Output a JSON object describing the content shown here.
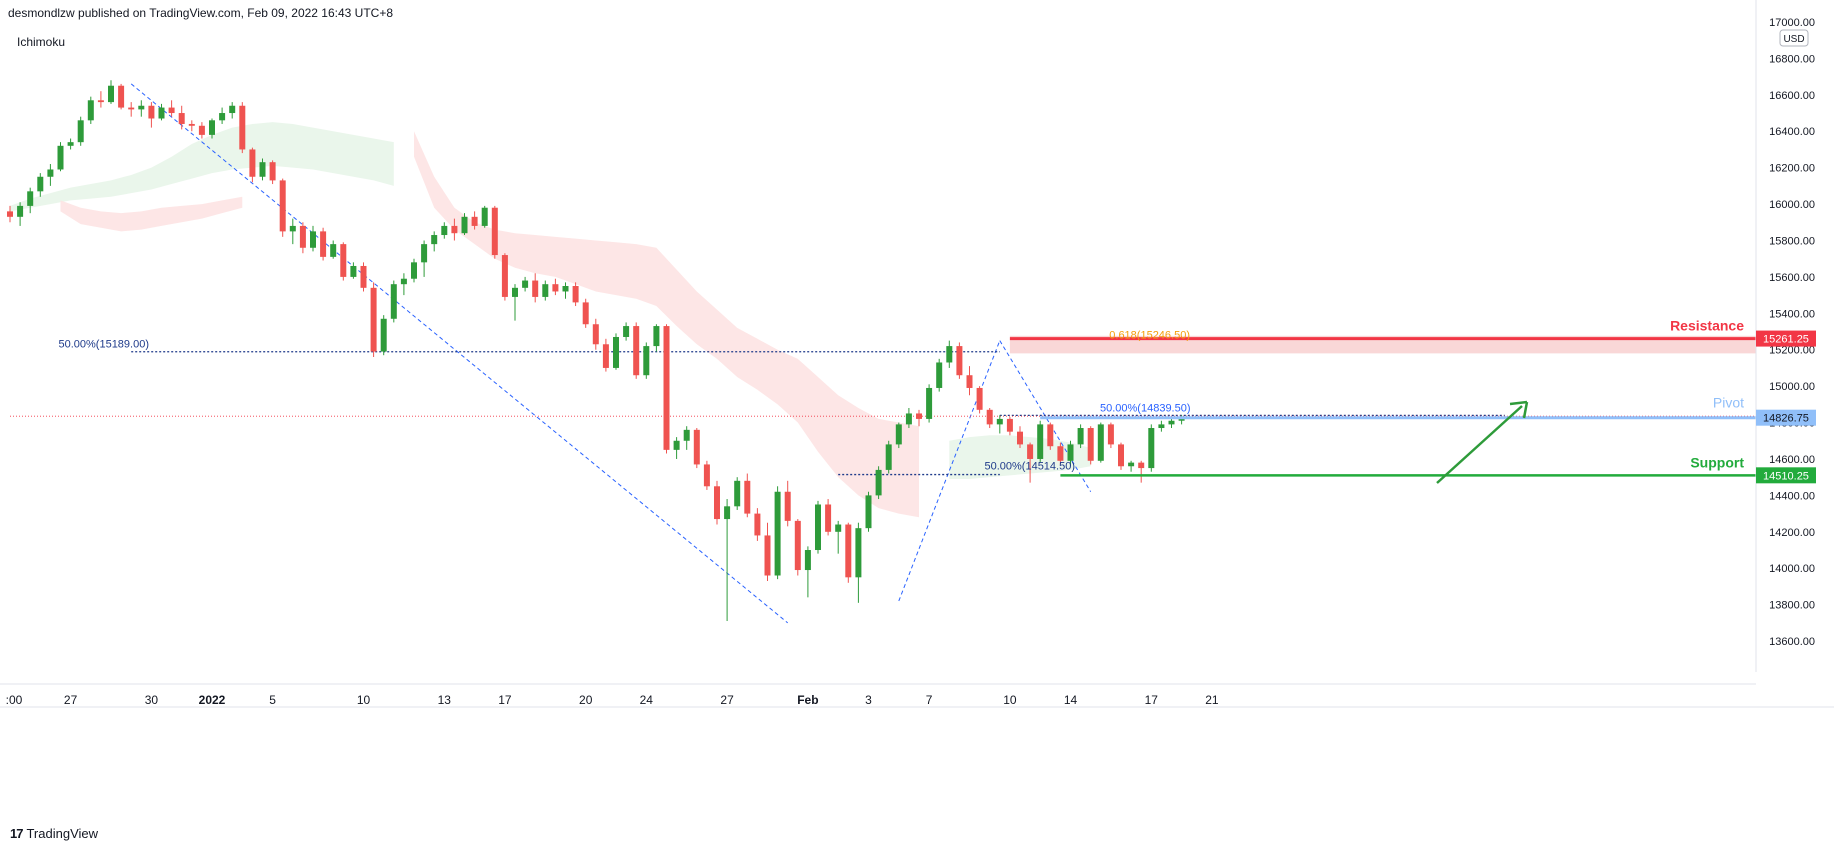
{
  "header": {
    "published_text": "desmondlzw published on TradingView.com, Feb 09, 2022 16:43 UTC+8"
  },
  "indicator": {
    "label": "Ichimoku"
  },
  "footer": {
    "logo_glyph": "17",
    "brand": "TradingView"
  },
  "chart_data": {
    "type": "candlestick",
    "currency": "USD",
    "y_range": [
      13430,
      17000
    ],
    "y_ticks": [
      "13600.00",
      "13800.00",
      "14000.00",
      "14200.00",
      "14400.00",
      "14600.00",
      "14800.00",
      "15000.00",
      "15200.00",
      "15400.00",
      "15600.00",
      "15800.00",
      "16000.00",
      "16200.00",
      "16400.00",
      "16600.00",
      "16800.00",
      "17000.00"
    ],
    "x_ticks": [
      {
        "label": ":00",
        "bar": 0,
        "bold": false
      },
      {
        "label": "27",
        "bar": 6,
        "bold": false
      },
      {
        "label": "30",
        "bar": 14,
        "bold": false
      },
      {
        "label": "2022",
        "bar": 20,
        "bold": true
      },
      {
        "label": "5",
        "bar": 26,
        "bold": false
      },
      {
        "label": "10",
        "bar": 35,
        "bold": false
      },
      {
        "label": "13",
        "bar": 43,
        "bold": false
      },
      {
        "label": "17",
        "bar": 49,
        "bold": false
      },
      {
        "label": "20",
        "bar": 57,
        "bold": false
      },
      {
        "label": "24",
        "bar": 63,
        "bold": false
      },
      {
        "label": "27",
        "bar": 71,
        "bold": false
      },
      {
        "label": "Feb",
        "bar": 79,
        "bold": true
      },
      {
        "label": "3",
        "bar": 85,
        "bold": false
      },
      {
        "label": "7",
        "bar": 91,
        "bold": false
      },
      {
        "label": "10",
        "bar": 99,
        "bold": false
      },
      {
        "label": "14",
        "bar": 105,
        "bold": false
      },
      {
        "label": "17",
        "bar": 113,
        "bold": false
      },
      {
        "label": "21",
        "bar": 119,
        "bold": false
      }
    ],
    "bar_count": 123,
    "candles": [
      [
        15960,
        15990,
        15900,
        15930
      ],
      [
        15930,
        16010,
        15880,
        15990
      ],
      [
        15990,
        16090,
        15950,
        16070
      ],
      [
        16070,
        16170,
        16040,
        16150
      ],
      [
        16150,
        16220,
        16100,
        16190
      ],
      [
        16190,
        16340,
        16180,
        16320
      ],
      [
        16320,
        16360,
        16300,
        16340
      ],
      [
        16340,
        16480,
        16320,
        16460
      ],
      [
        16460,
        16590,
        16440,
        16570
      ],
      [
        16570,
        16620,
        16530,
        16560
      ],
      [
        16560,
        16680,
        16550,
        16650
      ],
      [
        16650,
        16660,
        16520,
        16530
      ],
      [
        16530,
        16560,
        16480,
        16520
      ],
      [
        16520,
        16570,
        16480,
        16540
      ],
      [
        16540,
        16560,
        16420,
        16470
      ],
      [
        16470,
        16550,
        16460,
        16530
      ],
      [
        16530,
        16570,
        16480,
        16500
      ],
      [
        16500,
        16540,
        16410,
        16440
      ],
      [
        16440,
        16460,
        16400,
        16430
      ],
      [
        16430,
        16450,
        16360,
        16380
      ],
      [
        16380,
        16470,
        16360,
        16460
      ],
      [
        16460,
        16530,
        16440,
        16500
      ],
      [
        16500,
        16560,
        16470,
        16540
      ],
      [
        16540,
        16560,
        16280,
        16300
      ],
      [
        16300,
        16310,
        16120,
        16150
      ],
      [
        16150,
        16250,
        16130,
        16230
      ],
      [
        16230,
        16240,
        16110,
        16130
      ],
      [
        16130,
        16140,
        15820,
        15850
      ],
      [
        15850,
        15920,
        15780,
        15880
      ],
      [
        15880,
        15900,
        15730,
        15760
      ],
      [
        15760,
        15880,
        15740,
        15850
      ],
      [
        15850,
        15870,
        15690,
        15710
      ],
      [
        15710,
        15800,
        15700,
        15780
      ],
      [
        15780,
        15790,
        15580,
        15600
      ],
      [
        15600,
        15680,
        15590,
        15660
      ],
      [
        15660,
        15680,
        15520,
        15540
      ],
      [
        15540,
        15570,
        15160,
        15190
      ],
      [
        15190,
        15390,
        15170,
        15370
      ],
      [
        15370,
        15580,
        15350,
        15560
      ],
      [
        15560,
        15620,
        15500,
        15590
      ],
      [
        15590,
        15700,
        15570,
        15680
      ],
      [
        15680,
        15800,
        15600,
        15780
      ],
      [
        15780,
        15850,
        15740,
        15830
      ],
      [
        15830,
        15900,
        15810,
        15880
      ],
      [
        15880,
        15920,
        15800,
        15840
      ],
      [
        15840,
        15950,
        15830,
        15930
      ],
      [
        15930,
        15960,
        15860,
        15880
      ],
      [
        15880,
        15990,
        15870,
        15980
      ],
      [
        15980,
        15990,
        15700,
        15720
      ],
      [
        15720,
        15730,
        15470,
        15490
      ],
      [
        15490,
        15560,
        15360,
        15540
      ],
      [
        15540,
        15600,
        15520,
        15580
      ],
      [
        15580,
        15620,
        15460,
        15490
      ],
      [
        15490,
        15580,
        15470,
        15560
      ],
      [
        15560,
        15590,
        15500,
        15520
      ],
      [
        15520,
        15570,
        15480,
        15550
      ],
      [
        15550,
        15570,
        15440,
        15460
      ],
      [
        15460,
        15480,
        15320,
        15340
      ],
      [
        15340,
        15370,
        15200,
        15230
      ],
      [
        15230,
        15260,
        15080,
        15100
      ],
      [
        15100,
        15290,
        15090,
        15270
      ],
      [
        15270,
        15350,
        15250,
        15330
      ],
      [
        15330,
        15350,
        15040,
        15060
      ],
      [
        15060,
        15240,
        15040,
        15220
      ],
      [
        15220,
        15340,
        15190,
        15330
      ],
      [
        15330,
        15340,
        14630,
        14650
      ],
      [
        14650,
        14720,
        14600,
        14700
      ],
      [
        14700,
        14780,
        14650,
        14760
      ],
      [
        14760,
        14770,
        14550,
        14570
      ],
      [
        14570,
        14590,
        14430,
        14450
      ],
      [
        14450,
        14480,
        14240,
        14270
      ],
      [
        14270,
        14380,
        13710,
        14340
      ],
      [
        14340,
        14500,
        14320,
        14480
      ],
      [
        14480,
        14520,
        14280,
        14300
      ],
      [
        14300,
        14330,
        14150,
        14180
      ],
      [
        14180,
        14250,
        13930,
        13960
      ],
      [
        13960,
        14450,
        13940,
        14420
      ],
      [
        14420,
        14480,
        14230,
        14260
      ],
      [
        14260,
        14270,
        13960,
        13990
      ],
      [
        13990,
        14120,
        13840,
        14100
      ],
      [
        14100,
        14370,
        14080,
        14350
      ],
      [
        14350,
        14380,
        14180,
        14200
      ],
      [
        14200,
        14260,
        14080,
        14240
      ],
      [
        14240,
        14250,
        13920,
        13950
      ],
      [
        13950,
        14250,
        13810,
        14220
      ],
      [
        14220,
        14420,
        14200,
        14400
      ],
      [
        14400,
        14560,
        14380,
        14540
      ],
      [
        14540,
        14700,
        14520,
        14680
      ],
      [
        14680,
        14800,
        14660,
        14790
      ],
      [
        14790,
        14880,
        14770,
        14850
      ],
      [
        14850,
        14870,
        14780,
        14820
      ],
      [
        14820,
        15010,
        14800,
        14990
      ],
      [
        14990,
        15150,
        14970,
        15130
      ],
      [
        15130,
        15250,
        15100,
        15220
      ],
      [
        15220,
        15240,
        15040,
        15060
      ],
      [
        15060,
        15110,
        14950,
        14990
      ],
      [
        14990,
        15000,
        14850,
        14870
      ],
      [
        14870,
        14880,
        14770,
        14790
      ],
      [
        14790,
        14840,
        14740,
        14820
      ],
      [
        14820,
        14830,
        14730,
        14750
      ],
      [
        14750,
        14780,
        14660,
        14680
      ],
      [
        14680,
        14690,
        14470,
        14600
      ],
      [
        14600,
        14810,
        14580,
        14790
      ],
      [
        14790,
        14800,
        14650,
        14670
      ],
      [
        14670,
        14690,
        14570,
        14590
      ],
      [
        14590,
        14700,
        14560,
        14680
      ],
      [
        14680,
        14790,
        14660,
        14770
      ],
      [
        14770,
        14780,
        14570,
        14590
      ],
      [
        14590,
        14800,
        14580,
        14790
      ],
      [
        14790,
        14800,
        14660,
        14680
      ],
      [
        14680,
        14690,
        14540,
        14560
      ],
      [
        14560,
        14590,
        14530,
        14580
      ],
      [
        14580,
        14590,
        14470,
        14550
      ],
      [
        14550,
        14790,
        14530,
        14770
      ],
      [
        14770,
        14810,
        14750,
        14790
      ],
      [
        14790,
        14830,
        14770,
        14810
      ],
      [
        14810,
        14840,
        14790,
        14830
      ]
    ],
    "cloud": {
      "green_1": {
        "x": [
          0,
          2,
          4,
          6,
          8,
          10,
          12,
          14,
          16,
          18,
          20,
          22,
          24,
          26,
          28,
          30,
          32,
          34,
          36,
          38
        ],
        "hi": [
          15990,
          16030,
          16060,
          16090,
          16110,
          16130,
          16160,
          16200,
          16260,
          16330,
          16380,
          16420,
          16440,
          16450,
          16440,
          16420,
          16400,
          16380,
          16360,
          16340
        ],
        "lo": [
          15960,
          15980,
          16000,
          16020,
          16030,
          16040,
          16060,
          16080,
          16110,
          16140,
          16170,
          16190,
          16200,
          16210,
          16200,
          16190,
          16170,
          16150,
          16130,
          16100
        ]
      },
      "red_1": {
        "x": [
          5,
          7,
          9,
          11,
          13,
          15,
          17,
          19,
          21,
          23
        ],
        "hi": [
          16020,
          15980,
          15960,
          15950,
          15960,
          15980,
          15990,
          16000,
          16020,
          16040
        ],
        "lo": [
          15960,
          15890,
          15870,
          15850,
          15860,
          15880,
          15900,
          15920,
          15950,
          15980
        ]
      },
      "red_2": {
        "x": [
          40,
          42,
          44,
          46,
          48,
          50,
          52,
          54,
          56,
          58,
          60,
          62,
          64,
          66,
          68,
          70,
          72,
          74,
          76,
          78,
          80,
          82,
          84,
          86,
          88,
          90
        ],
        "hi": [
          16400,
          16150,
          15980,
          15900,
          15860,
          15840,
          15830,
          15820,
          15810,
          15800,
          15790,
          15780,
          15760,
          15640,
          15520,
          15420,
          15320,
          15260,
          15200,
          15150,
          15050,
          14950,
          14880,
          14820,
          14800,
          14780
        ],
        "lo": [
          16260,
          15980,
          15860,
          15780,
          15700,
          15650,
          15620,
          15600,
          15560,
          15520,
          15500,
          15480,
          15440,
          15330,
          15230,
          15150,
          15050,
          14980,
          14900,
          14800,
          14640,
          14500,
          14400,
          14330,
          14300,
          14280
        ]
      },
      "green_2": {
        "x": [
          93,
          95,
          97,
          99,
          101,
          103,
          105,
          107
        ],
        "hi": [
          14700,
          14720,
          14730,
          14730,
          14720,
          14710,
          14690,
          14660
        ],
        "lo": [
          14490,
          14490,
          14500,
          14510,
          14520,
          14530,
          14540,
          14560
        ]
      }
    },
    "levels": {
      "resistance": {
        "label": "Resistance",
        "price_label": "15261.25",
        "value": 15261.25,
        "color": "#f23645"
      },
      "pivot": {
        "label": "Pivot",
        "price_label": "14826.75",
        "value": 14826.75,
        "color": "#90bff9"
      },
      "support": {
        "label": "Support",
        "price_label": "14510.25",
        "value": 14510.25,
        "color": "#22ab3c"
      }
    },
    "annotations": {
      "fib_618": "0.618(15246.50)",
      "fib_50_a": "50.00%(15189.00)",
      "fib_50_b": "50.00%(14514.50)",
      "fib_50_c": "50.00%(14839.50)"
    },
    "current_price": 14835
  }
}
